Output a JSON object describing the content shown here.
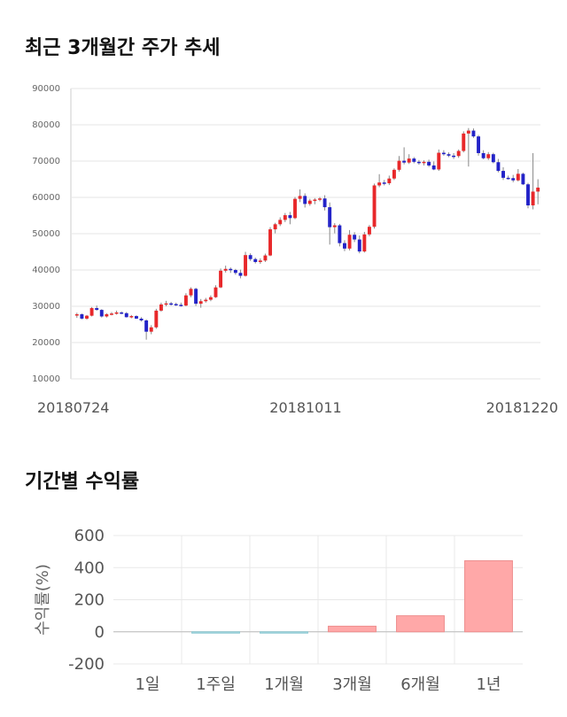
{
  "titles": {
    "price_chart": "최근 3개월간 주가 추세",
    "returns_chart": "기간별 수익률"
  },
  "chart_data": [
    {
      "type": "candlestick",
      "title": "최근 3개월간 주가 추세",
      "ylim": [
        10000,
        90000
      ],
      "y_ticks": [
        "10000",
        "20000",
        "30000",
        "40000",
        "50000",
        "60000",
        "70000",
        "80000",
        "90000"
      ],
      "x_tick_labels": [
        "20180724",
        "20181011",
        "20181220"
      ],
      "grid": true,
      "colors": {
        "up": "#e8282a",
        "down": "#2323c8",
        "wick": "#888888"
      },
      "candles": [
        [
          27500,
          28200,
          26800,
          27800
        ],
        [
          27800,
          28000,
          26400,
          26600
        ],
        [
          26600,
          27600,
          26300,
          27400
        ],
        [
          27400,
          29800,
          27200,
          29500
        ],
        [
          29500,
          30200,
          28800,
          29000
        ],
        [
          29000,
          29200,
          26900,
          27200
        ],
        [
          27200,
          28100,
          26900,
          27800
        ],
        [
          27800,
          28400,
          27500,
          28000
        ],
        [
          28000,
          28800,
          27700,
          28300
        ],
        [
          28300,
          28600,
          27800,
          28100
        ],
        [
          28100,
          28400,
          26900,
          27000
        ],
        [
          27000,
          27600,
          26700,
          27300
        ],
        [
          27300,
          27500,
          26500,
          26600
        ],
        [
          26600,
          27000,
          25800,
          26100
        ],
        [
          26100,
          26400,
          20800,
          23000
        ],
        [
          23000,
          24800,
          22300,
          24200
        ],
        [
          24200,
          29300,
          23800,
          28800
        ],
        [
          28800,
          31000,
          28500,
          30500
        ],
        [
          30500,
          31500,
          30000,
          30800
        ],
        [
          30800,
          31200,
          30200,
          30600
        ],
        [
          30600,
          31000,
          30100,
          30400
        ],
        [
          30400,
          31000,
          29900,
          30200
        ],
        [
          30200,
          33600,
          30000,
          33000
        ],
        [
          33000,
          35200,
          32500,
          34800
        ],
        [
          34800,
          35100,
          30100,
          30700
        ],
        [
          30700,
          32000,
          29600,
          31400
        ],
        [
          31400,
          32300,
          31000,
          31800
        ],
        [
          31800,
          33000,
          31400,
          32500
        ],
        [
          32500,
          35800,
          32300,
          35200
        ],
        [
          35200,
          40400,
          35000,
          39800
        ],
        [
          39800,
          41200,
          39300,
          40300
        ],
        [
          40300,
          40700,
          39200,
          40000
        ],
        [
          40000,
          40300,
          38700,
          39200
        ],
        [
          39200,
          40100,
          37700,
          38400
        ],
        [
          38400,
          45000,
          38200,
          44100
        ],
        [
          44100,
          44600,
          42500,
          43000
        ],
        [
          43000,
          43400,
          41800,
          42200
        ],
        [
          42200,
          43200,
          41700,
          42600
        ],
        [
          42600,
          44500,
          42200,
          44000
        ],
        [
          44000,
          51800,
          43800,
          51200
        ],
        [
          51200,
          53000,
          50100,
          52600
        ],
        [
          52600,
          54500,
          52100,
          53800
        ],
        [
          53800,
          55700,
          53200,
          55100
        ],
        [
          55100,
          56000,
          52600,
          54300
        ],
        [
          54300,
          60100,
          54000,
          59600
        ],
        [
          59600,
          62200,
          58700,
          60400
        ],
        [
          60400,
          61100,
          57200,
          58200
        ],
        [
          58200,
          59600,
          57700,
          59100
        ],
        [
          59100,
          59800,
          58100,
          59400
        ],
        [
          59400,
          60100,
          58900,
          59700
        ],
        [
          59700,
          60600,
          56400,
          57300
        ],
        [
          57300,
          58600,
          47000,
          51800
        ],
        [
          51800,
          52900,
          50100,
          52300
        ],
        [
          52300,
          52700,
          46500,
          47400
        ],
        [
          47400,
          48200,
          45200,
          45900
        ],
        [
          45900,
          51000,
          45400,
          49700
        ],
        [
          49700,
          50400,
          47700,
          48400
        ],
        [
          48400,
          49500,
          44600,
          45100
        ],
        [
          45100,
          50500,
          44800,
          49800
        ],
        [
          49800,
          52400,
          49300,
          51900
        ],
        [
          51900,
          63800,
          51400,
          63300
        ],
        [
          63300,
          66400,
          62800,
          64100
        ],
        [
          64100,
          64800,
          63300,
          63900
        ],
        [
          63900,
          66000,
          63400,
          65200
        ],
        [
          65200,
          68000,
          64800,
          67600
        ],
        [
          67600,
          71400,
          67100,
          70100
        ],
        [
          70100,
          73800,
          69100,
          69600
        ],
        [
          69600,
          71900,
          69200,
          70700
        ],
        [
          70700,
          71100,
          69400,
          69800
        ],
        [
          69800,
          70300,
          69000,
          69500
        ],
        [
          69500,
          70200,
          68800,
          69800
        ],
        [
          69800,
          70400,
          68400,
          68800
        ],
        [
          68800,
          69900,
          67500,
          67700
        ],
        [
          67700,
          73200,
          67300,
          72300
        ],
        [
          72300,
          73000,
          71500,
          71900
        ],
        [
          71900,
          72400,
          71100,
          71500
        ],
        [
          71500,
          72200,
          70600,
          71400
        ],
        [
          71400,
          73200,
          70900,
          72800
        ],
        [
          72800,
          78200,
          72400,
          77600
        ],
        [
          77600,
          79100,
          68500,
          78400
        ],
        [
          78400,
          79000,
          76400,
          76800
        ],
        [
          76800,
          77200,
          71500,
          72200
        ],
        [
          72200,
          73000,
          70500,
          70800
        ],
        [
          70800,
          72500,
          70300,
          71900
        ],
        [
          71900,
          72300,
          69400,
          69700
        ],
        [
          69700,
          70600,
          66900,
          67300
        ],
        [
          67300,
          68300,
          64800,
          65400
        ],
        [
          65400,
          66000,
          64900,
          65300
        ],
        [
          65300,
          66200,
          64200,
          64700
        ],
        [
          64700,
          67800,
          64400,
          66500
        ],
        [
          66500,
          66800,
          63400,
          63600
        ],
        [
          63600,
          64000,
          57000,
          57800
        ],
        [
          57800,
          72200,
          56700,
          61600
        ],
        [
          61600,
          65000,
          58100,
          62700
        ]
      ]
    },
    {
      "type": "bar",
      "title": "기간별 수익률",
      "ylabel": "수익률(%)",
      "ylim": [
        -200,
        600
      ],
      "y_ticks": [
        "-200",
        "0",
        "200",
        "400",
        "600"
      ],
      "categories": [
        "1일",
        "1주일",
        "1개월",
        "3개월",
        "6개월",
        "1년"
      ],
      "values": [
        0,
        -3,
        -8,
        35,
        100,
        443
      ],
      "colors": {
        "positive": "#ffa8a8",
        "positive_edge": "#ee8e8e",
        "negative": "#a5dbe3",
        "negative_edge": "#8ec9d2"
      },
      "grid": true
    }
  ]
}
